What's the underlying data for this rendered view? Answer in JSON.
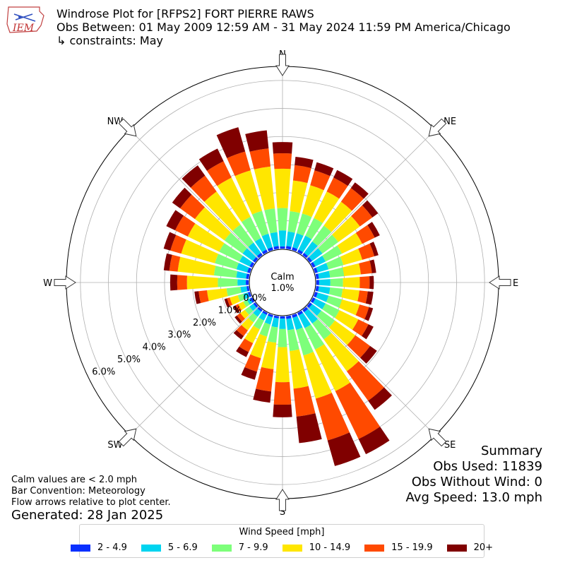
{
  "header": {
    "logo_text": "IEM",
    "title": "Windrose Plot for [RFPS2] FORT PIERRE RAWS",
    "subtitle": "Obs Between: 01 May 2009 12:59 AM - 31 May 2024 11:59 PM America/Chicago",
    "constraints": "↳ constraints: May"
  },
  "summary": {
    "heading": "Summary",
    "obs_used": "Obs Used: 11839",
    "obs_without_wind": "Obs Without Wind: 0",
    "avg_speed": "Avg Speed: 13.0 mph"
  },
  "notes": {
    "line1": "Calm values are < 2.0 mph",
    "line2": "Bar Convention: Meteorology",
    "line3": "Flow arrows relative to plot center."
  },
  "generated": "Generated: 28 Jan 2025",
  "legend": {
    "title": "Wind Speed [mph]",
    "items": [
      {
        "label": "2 - 4.9",
        "color": "#0a30ff"
      },
      {
        "label": "5 - 6.9",
        "color": "#00d4f0"
      },
      {
        "label": "7 - 9.9",
        "color": "#7dff7a"
      },
      {
        "label": "10 - 14.9",
        "color": "#ffe600"
      },
      {
        "label": "15 - 19.9",
        "color": "#ff4a00"
      },
      {
        "label": "20+",
        "color": "#800000"
      }
    ]
  },
  "chart_data": {
    "type": "windrose",
    "calm_label": "Calm",
    "calm_value": "1.0%",
    "ring_labels": [
      "0.0%",
      "1.0%",
      "2.0%",
      "3.0%",
      "4.0%",
      "5.0%",
      "6.0%"
    ],
    "ring_values": [
      0,
      1,
      2,
      3,
      4,
      5,
      6
    ],
    "rmax": 6.5,
    "direction_labels": [
      "N",
      "NE",
      "E",
      "SE",
      "S",
      "SW",
      "W",
      "NW"
    ],
    "directions_deg": [
      0,
      10,
      20,
      30,
      40,
      50,
      60,
      70,
      80,
      90,
      100,
      110,
      120,
      130,
      140,
      150,
      160,
      170,
      180,
      190,
      200,
      210,
      220,
      230,
      240,
      250,
      260,
      270,
      280,
      290,
      300,
      310,
      320,
      330,
      340,
      350
    ],
    "bins": [
      "2 - 4.9",
      "5 - 6.9",
      "7 - 9.9",
      "10 - 14.9",
      "15 - 19.9",
      "20+"
    ],
    "colors": [
      "#0a30ff",
      "#00d4f0",
      "#7dff7a",
      "#ffe600",
      "#ff4a00",
      "#800000"
    ],
    "cumulative": [
      [
        0.08,
        0.65,
        1.45,
        2.85,
        3.4,
        3.8
      ],
      [
        0.1,
        0.62,
        1.35,
        2.45,
        3.0,
        3.3
      ],
      [
        0.1,
        0.62,
        1.35,
        2.4,
        2.95,
        3.25
      ],
      [
        0.1,
        0.65,
        1.35,
        2.4,
        2.95,
        3.25
      ],
      [
        0.1,
        0.6,
        1.3,
        2.35,
        2.95,
        3.2
      ],
      [
        0.1,
        0.55,
        1.25,
        2.2,
        2.75,
        3.0
      ],
      [
        0.1,
        0.5,
        1.15,
        1.95,
        2.45,
        2.65
      ],
      [
        0.1,
        0.5,
        1.05,
        1.75,
        2.2,
        2.35
      ],
      [
        0.1,
        0.5,
        1.0,
        1.6,
        2.0,
        2.15
      ],
      [
        0.1,
        0.5,
        0.95,
        1.55,
        1.9,
        2.05
      ],
      [
        0.1,
        0.5,
        0.95,
        1.55,
        1.85,
        2.05
      ],
      [
        0.1,
        0.5,
        1.0,
        1.65,
        2.0,
        2.15
      ],
      [
        0.1,
        0.5,
        1.05,
        1.8,
        2.2,
        2.4
      ],
      [
        0.1,
        0.5,
        1.1,
        2.0,
        2.65,
        2.95
      ],
      [
        0.1,
        0.6,
        1.3,
        2.7,
        4.0,
        4.4
      ],
      [
        0.1,
        0.6,
        1.45,
        3.1,
        5.0,
        5.6
      ],
      [
        0.1,
        0.55,
        1.5,
        3.1,
        4.65,
        5.6
      ],
      [
        0.1,
        0.5,
        1.25,
        2.6,
        3.6,
        4.55
      ],
      [
        0.08,
        0.45,
        1.1,
        2.35,
        3.15,
        3.6
      ],
      [
        0.08,
        0.4,
        0.95,
        1.9,
        2.7,
        3.1
      ],
      [
        0.08,
        0.35,
        0.8,
        1.6,
        2.1,
        2.4
      ],
      [
        0.08,
        0.3,
        0.65,
        1.2,
        1.55,
        1.75
      ],
      [
        0.08,
        0.3,
        0.55,
        0.9,
        1.15,
        1.3
      ],
      [
        0.08,
        0.25,
        0.45,
        0.65,
        0.8,
        0.9
      ],
      [
        0.08,
        0.2,
        0.35,
        0.55,
        0.65,
        0.75
      ],
      [
        0.08,
        0.25,
        0.45,
        0.75,
        0.85,
        0.95
      ],
      [
        0.08,
        0.3,
        0.8,
        1.5,
        1.8,
        1.95
      ],
      [
        0.1,
        0.4,
        1.1,
        2.2,
        2.55,
        2.8
      ],
      [
        0.1,
        0.45,
        1.25,
        2.55,
        2.85,
        3.05
      ],
      [
        0.1,
        0.5,
        1.3,
        2.55,
        2.95,
        3.2
      ],
      [
        0.1,
        0.5,
        1.3,
        2.55,
        3.05,
        3.4
      ],
      [
        0.1,
        0.55,
        1.35,
        2.65,
        3.3,
        3.65
      ],
      [
        0.1,
        0.55,
        1.35,
        2.8,
        3.5,
        3.95
      ],
      [
        0.1,
        0.55,
        1.4,
        2.95,
        3.6,
        4.1
      ],
      [
        0.1,
        0.6,
        1.45,
        2.95,
        3.65,
        4.55
      ],
      [
        0.1,
        0.6,
        1.45,
        2.95,
        3.6,
        4.25
      ]
    ]
  }
}
